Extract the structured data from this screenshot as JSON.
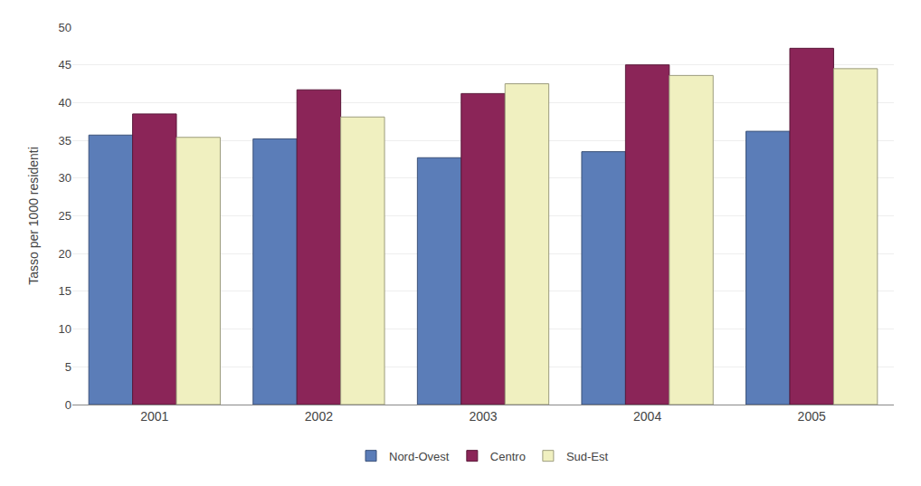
{
  "chart_data": {
    "type": "bar",
    "categories": [
      "2001",
      "2002",
      "2003",
      "2004",
      "2005"
    ],
    "series": [
      {
        "name": "Nord-Ovest",
        "color": "#5B7DB8",
        "values": [
          35.7,
          35.2,
          32.7,
          33.5,
          36.2
        ]
      },
      {
        "name": "Centro",
        "color": "#8B2558",
        "values": [
          38.5,
          41.7,
          41.2,
          45.0,
          47.2
        ]
      },
      {
        "name": "Sud-Est",
        "color": "#F0F0C0",
        "values": [
          35.4,
          38.1,
          42.5,
          43.6,
          44.5
        ]
      }
    ],
    "ylabel": "Tasso per 1000 residenti",
    "ylim": [
      0,
      50
    ],
    "yticks": [
      0,
      5,
      10,
      15,
      20,
      25,
      30,
      35,
      40,
      45,
      50
    ],
    "grid": true,
    "legend": "bottom"
  }
}
